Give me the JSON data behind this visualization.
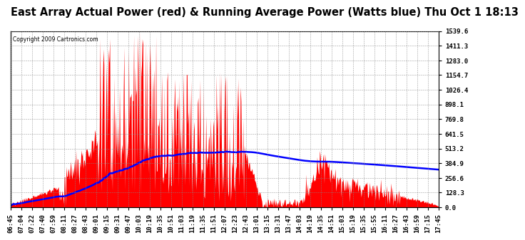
{
  "title": "East Array Actual Power (red) & Running Average Power (Watts blue) Thu Oct 1 18:13",
  "copyright": "Copyright 2009 Cartronics.com",
  "ylim": [
    0,
    1539.6
  ],
  "yticks": [
    0.0,
    128.3,
    256.6,
    384.9,
    513.2,
    641.5,
    769.8,
    898.1,
    1026.4,
    1154.7,
    1283.0,
    1411.3,
    1539.6
  ],
  "background_color": "#ffffff",
  "grid_color": "#888888",
  "actual_color": "red",
  "avg_color": "blue",
  "title_fontsize": 10.5,
  "tick_fontsize": 6.5,
  "x_tick_labels": [
    "06:45",
    "07:04",
    "07:22",
    "07:40",
    "07:59",
    "08:11",
    "08:27",
    "08:43",
    "09:01",
    "09:15",
    "09:31",
    "09:47",
    "10:03",
    "10:19",
    "10:35",
    "10:51",
    "11:03",
    "11:19",
    "11:35",
    "11:51",
    "12:07",
    "12:23",
    "12:43",
    "13:01",
    "13:15",
    "13:31",
    "13:47",
    "14:03",
    "14:19",
    "14:35",
    "14:51",
    "15:03",
    "15:19",
    "15:35",
    "15:55",
    "16:11",
    "16:27",
    "16:43",
    "16:59",
    "17:15",
    "17:45"
  ]
}
